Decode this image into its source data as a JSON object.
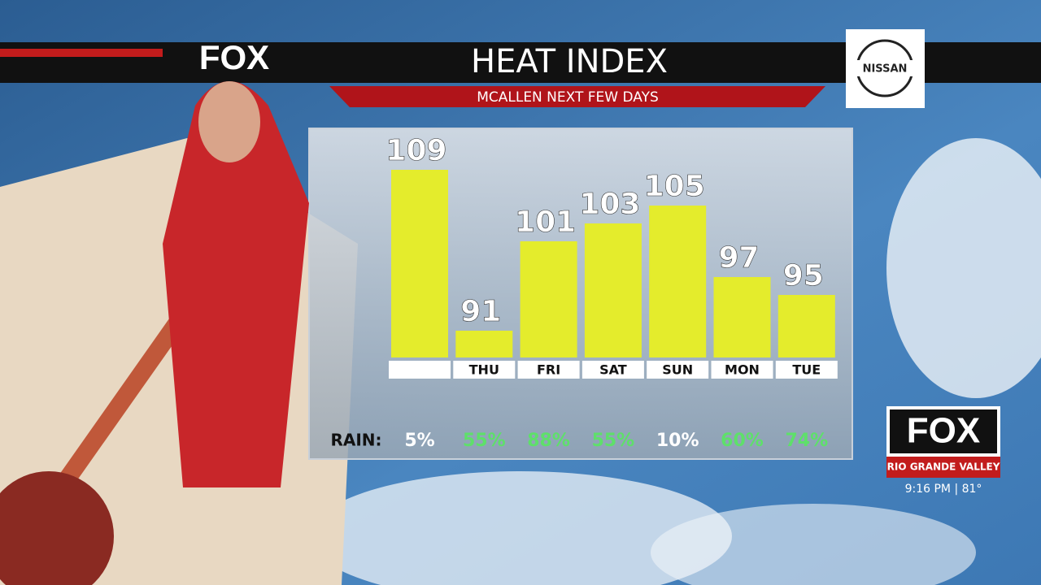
{
  "brand": {
    "logo": "FOX",
    "sponsor": "NISSAN",
    "station_logo": "FOX",
    "station_name": "RIO GRANDE VALLEY",
    "clock": "9:16 PM | 81°"
  },
  "chart_data": {
    "type": "bar",
    "title": "HEAT INDEX",
    "subtitle": "MCALLEN NEXT FEW DAYS",
    "categories": [
      null,
      "THU",
      "FRI",
      "SAT",
      "SUN",
      "MON",
      "TUE"
    ],
    "values": [
      109,
      91,
      101,
      103,
      105,
      97,
      95
    ],
    "color": "#e4ec2c",
    "ylim": [
      88,
      113
    ],
    "rain": {
      "label": "RAIN:",
      "values": [
        5,
        55,
        88,
        55,
        10,
        60,
        74
      ],
      "value_labels": [
        "5%",
        "55%",
        "88%",
        "55%",
        "10%",
        "60%",
        "74%"
      ],
      "colors": [
        "#ffffff",
        "#5ee06a",
        "#5ee06a",
        "#5ee06a",
        "#ffffff",
        "#5ee06a",
        "#5ee06a"
      ]
    }
  }
}
